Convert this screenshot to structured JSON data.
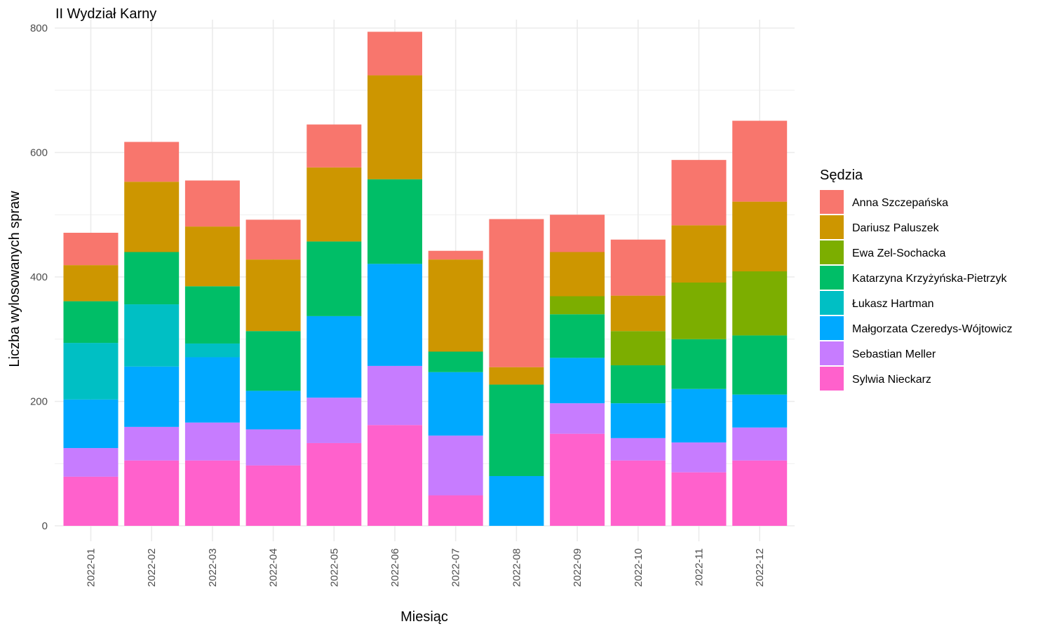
{
  "chart_data": {
    "type": "bar",
    "stacked": true,
    "title": "II Wydział Karny",
    "xlabel": "Miesiąc",
    "ylabel": "Liczba wylosowanych spraw",
    "ylim": [
      0,
      800
    ],
    "yticks": [
      0,
      200,
      400,
      600,
      800
    ],
    "grid": true,
    "legend": {
      "title": "Sędzia",
      "position": "right"
    },
    "categories": [
      "2022-01",
      "2022-02",
      "2022-03",
      "2022-04",
      "2022-05",
      "2022-06",
      "2022-07",
      "2022-08",
      "2022-09",
      "2022-10",
      "2022-11",
      "2022-12"
    ],
    "series": [
      {
        "name": "Anna Szczepańska",
        "color": "#F8766D",
        "values": [
          52,
          64,
          74,
          64,
          69,
          70,
          14,
          238,
          60,
          90,
          105,
          130
        ]
      },
      {
        "name": "Dariusz Paluszek",
        "color": "#CD9600",
        "values": [
          58,
          113,
          96,
          115,
          119,
          167,
          148,
          28,
          71,
          57,
          92,
          112
        ]
      },
      {
        "name": "Ewa Zel-Sochacka",
        "color": "#7CAE00",
        "values": [
          0,
          0,
          0,
          0,
          0,
          0,
          0,
          0,
          29,
          55,
          91,
          103
        ]
      },
      {
        "name": "Katarzyna Krzyżyńska-Pietrzyk",
        "color": "#00BE67",
        "values": [
          67,
          84,
          92,
          96,
          120,
          136,
          33,
          147,
          70,
          61,
          80,
          95
        ]
      },
      {
        "name": "Łukasz Hartman",
        "color": "#00BFC4",
        "values": [
          91,
          100,
          22,
          0,
          0,
          0,
          0,
          0,
          0,
          0,
          0,
          0
        ]
      },
      {
        "name": "Małgorzata Czeredys-Wójtowicz",
        "color": "#00A9FF",
        "values": [
          78,
          97,
          105,
          62,
          131,
          164,
          102,
          80,
          73,
          56,
          86,
          53
        ]
      },
      {
        "name": "Sebastian Meller",
        "color": "#C77CFF",
        "values": [
          46,
          54,
          61,
          58,
          73,
          95,
          96,
          0,
          49,
          36,
          48,
          53
        ]
      },
      {
        "name": "Sylwia Nieckarz",
        "color": "#FF61CC",
        "values": [
          79,
          105,
          105,
          97,
          133,
          162,
          49,
          0,
          148,
          105,
          86,
          105
        ]
      }
    ]
  }
}
